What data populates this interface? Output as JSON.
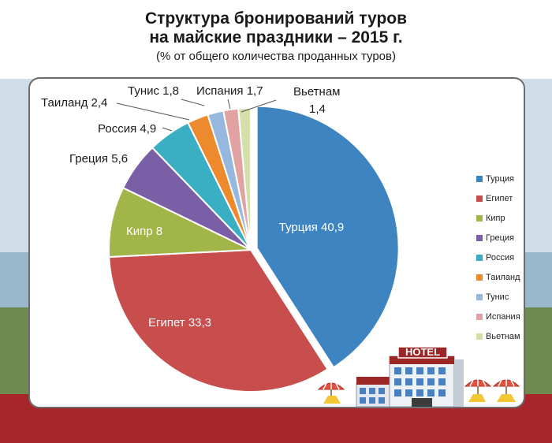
{
  "page": {
    "title_line1": "Структура бронирований туров",
    "title_line2": "на майские праздники – 2015 г.",
    "subtitle": "(% от общего количества проданных туров)"
  },
  "hotel_sign": "HOTEL",
  "chart_data": {
    "type": "pie",
    "title": "Структура бронирований туров на майские праздники – 2015 г.",
    "subtitle": "(% от общего количества проданных туров)",
    "legend_position": "right",
    "slices": [
      {
        "name": "Турция",
        "value": 40.9,
        "color": "#3d84c0",
        "label": "Турция 40,9"
      },
      {
        "name": "Египет",
        "value": 33.3,
        "color": "#c84d4d",
        "label": "Египет 33,3"
      },
      {
        "name": "Кипр",
        "value": 8,
        "color": "#a1b548",
        "label": "Кипр 8"
      },
      {
        "name": "Греция",
        "value": 5.6,
        "color": "#7a5ea6",
        "label": "Греция 5,6"
      },
      {
        "name": "Россия",
        "value": 4.9,
        "color": "#3aaec2",
        "label": "Россия 4,9"
      },
      {
        "name": "Таиланд",
        "value": 2.4,
        "color": "#ee8a2e",
        "label": "Таиланд 2,4"
      },
      {
        "name": "Тунис",
        "value": 1.8,
        "color": "#97b8de",
        "label": "Тунис 1,8"
      },
      {
        "name": "Испания",
        "value": 1.7,
        "color": "#e3a2a2",
        "label": "Испания 1,7"
      },
      {
        "name": "Вьетнам",
        "value": 1.4,
        "color": "#d5dfaa",
        "label_line1": "Вьетнам",
        "label_line2": "1,4"
      }
    ]
  }
}
